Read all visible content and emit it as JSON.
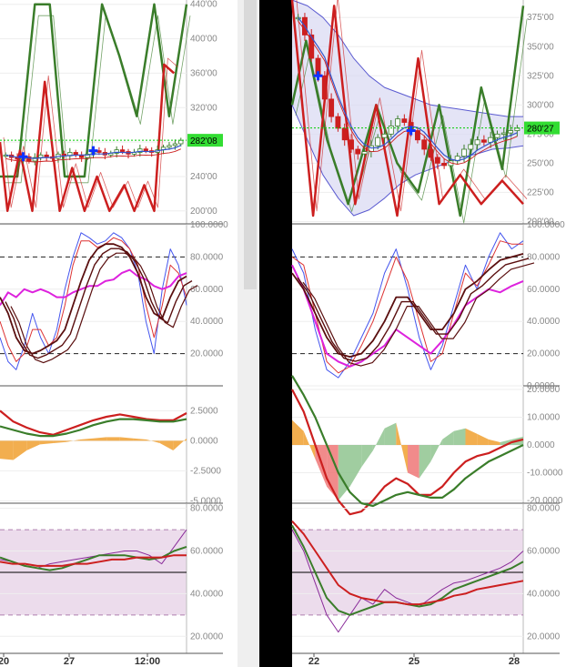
{
  "colors": {
    "bull": "#3a7d2a",
    "bear": "#cc1f1f",
    "price_line": "#00cc00",
    "bb_fill": "#d8d8f2",
    "bb_line": "#5a5ad0",
    "ma_blue": "#3355cc",
    "stoch_blue": "#4455ee",
    "stoch_red": "#dd3333",
    "stoch_magenta": "#dd22dd",
    "stoch_dark": "#5a0f0f",
    "macd_orange": "#f0a030",
    "macd_green": "#8fc48f",
    "macd_red": "#ee7777",
    "rsi_band": "#ecdcec",
    "rsi_purple": "#8a2c9a",
    "badge": "#33dd33",
    "separator": "#000000",
    "scrollbar": "#d9d9d9"
  },
  "chart_data": [
    {
      "id": "left-price",
      "type": "candlestick",
      "panel": "left",
      "price_badge": "282'08",
      "y_ticks": [
        "440'00",
        "400'00",
        "360'00",
        "320'00",
        "280'00",
        "240'00",
        "200'00"
      ],
      "ylim": [
        185,
        445
      ],
      "x_ticks": [
        "20",
        "27",
        "12:00"
      ],
      "current_price": 282.08,
      "zigzag_green": [
        [
          0,
          240
        ],
        [
          7,
          240
        ],
        [
          14,
          440
        ],
        [
          20,
          440
        ],
        [
          26,
          240
        ],
        [
          34,
          240
        ],
        [
          41,
          440
        ],
        [
          48,
          380
        ],
        [
          55,
          310
        ],
        [
          62,
          440
        ],
        [
          68,
          310
        ],
        [
          75,
          440
        ]
      ],
      "zigzag_red": [
        [
          0,
          280
        ],
        [
          3,
          200
        ],
        [
          8,
          270
        ],
        [
          13,
          200
        ],
        [
          18,
          350
        ],
        [
          24,
          200
        ],
        [
          29,
          250
        ],
        [
          34,
          200
        ],
        [
          39,
          240
        ],
        [
          44,
          200
        ],
        [
          50,
          230
        ],
        [
          54,
          200
        ],
        [
          58,
          230
        ],
        [
          62,
          200
        ],
        [
          66,
          370
        ],
        [
          70,
          360
        ]
      ],
      "candles_close": [
        265,
        262,
        260,
        263,
        258,
        262,
        265,
        263,
        261,
        266,
        264,
        268,
        265,
        262,
        266,
        270,
        268,
        265,
        267,
        271,
        269,
        266,
        268,
        272,
        270,
        268,
        271,
        274,
        276,
        278,
        282
      ]
    },
    {
      "id": "left-stoch",
      "type": "line",
      "panel": "left",
      "y_ticks": [
        "100.0000",
        "80.0000",
        "60.0000",
        "40.0000",
        "20.0000"
      ],
      "ylim": [
        0,
        100
      ],
      "dashed_levels": [
        80,
        20
      ],
      "series": [
        {
          "values": [
            30,
            15,
            10,
            25,
            45,
            30,
            20,
            35,
            60,
            80,
            95,
            92,
            88,
            90,
            95,
            92,
            85,
            70,
            40,
            20,
            60,
            85,
            75,
            50
          ]
        },
        {
          "values": [
            40,
            25,
            15,
            20,
            35,
            35,
            25,
            30,
            50,
            75,
            90,
            90,
            86,
            88,
            92,
            90,
            85,
            75,
            50,
            30,
            50,
            75,
            70,
            55
          ]
        },
        {
          "values": [
            50,
            58,
            55,
            60,
            58,
            60,
            58,
            55,
            55,
            58,
            60,
            62,
            62,
            65,
            66,
            70,
            72,
            68,
            66,
            62,
            60,
            62,
            68,
            70
          ]
        },
        {
          "values": [
            55,
            45,
            30,
            22,
            20,
            22,
            25,
            28,
            35,
            50,
            65,
            78,
            85,
            88,
            88,
            86,
            80,
            70,
            55,
            45,
            42,
            55,
            65,
            68
          ]
        }
      ]
    },
    {
      "id": "left-macd",
      "type": "area",
      "panel": "left",
      "y_ticks": [
        "2.5000",
        "0.0000",
        "-2.5000",
        "-5.0000"
      ],
      "ylim": [
        -5.2,
        4.5
      ],
      "histogram": [
        -1.5,
        -1.6,
        -0.8,
        -0.3,
        -0.2,
        -0.1,
        0.1,
        0.2,
        0.3,
        0.3,
        0.2,
        0.1,
        -0.2,
        -0.8,
        0.2
      ],
      "series": [
        {
          "values": [
            2.5,
            1.6,
            1.1,
            0.7,
            0.5,
            0.9,
            1.3,
            1.7,
            2.0,
            2.2,
            2.0,
            1.8,
            1.7,
            1.7,
            2.3
          ]
        },
        {
          "values": [
            1.2,
            0.9,
            0.6,
            0.4,
            0.4,
            0.6,
            0.9,
            1.3,
            1.6,
            1.8,
            1.8,
            1.7,
            1.6,
            1.6,
            1.8
          ]
        }
      ]
    },
    {
      "id": "left-rsi",
      "type": "line",
      "panel": "left",
      "y_ticks": [
        "80.0000",
        "60.0000",
        "40.0000",
        "20.0000"
      ],
      "ylim": [
        12,
        82
      ],
      "band": [
        30,
        70
      ],
      "h_line": 50,
      "series": [
        {
          "values": [
            56,
            55,
            53,
            52,
            54,
            55,
            56,
            57,
            58,
            59,
            60,
            60,
            58,
            54,
            62,
            70
          ]
        },
        {
          "values": [
            57,
            55,
            53,
            52,
            51,
            52,
            54,
            56,
            58,
            58,
            58,
            57,
            56,
            57,
            60,
            62
          ]
        },
        {
          "values": [
            55,
            54,
            54,
            53,
            53,
            53,
            54,
            54,
            55,
            56,
            56,
            57,
            57,
            57,
            58,
            58
          ]
        }
      ]
    },
    {
      "id": "right-price",
      "type": "candlestick",
      "panel": "right",
      "price_badge": "280'27",
      "y_ticks": [
        "375'00",
        "350'00",
        "325'00",
        "300'00",
        "275'00",
        "250'00",
        "225'00",
        "200'00"
      ],
      "ylim": [
        198,
        390
      ],
      "x_ticks": [
        "22",
        "25",
        "28"
      ],
      "current_price": 280.27,
      "bb_upper": [
        390,
        385,
        375,
        360,
        340,
        325,
        315,
        310,
        305,
        300,
        298,
        296,
        294,
        292,
        290,
        290
      ],
      "bb_lower": [
        300,
        270,
        240,
        220,
        205,
        210,
        220,
        232,
        240,
        245,
        250,
        255,
        258,
        262,
        263,
        265
      ],
      "zigzag_green": [
        [
          0,
          300
        ],
        [
          2,
          355
        ],
        [
          5,
          270
        ],
        [
          8,
          215
        ],
        [
          12,
          300
        ],
        [
          15,
          250
        ],
        [
          18,
          225
        ],
        [
          21,
          300
        ],
        [
          24,
          205
        ],
        [
          27,
          315
        ],
        [
          30,
          245
        ],
        [
          33,
          385
        ]
      ],
      "zigzag_red": [
        [
          0,
          390
        ],
        [
          3,
          205
        ],
        [
          6,
          385
        ],
        [
          9,
          215
        ],
        [
          12,
          300
        ],
        [
          15,
          205
        ],
        [
          18,
          340
        ],
        [
          21,
          215
        ],
        [
          24,
          240
        ],
        [
          27,
          215
        ],
        [
          30,
          235
        ],
        [
          33,
          215
        ]
      ],
      "candles_close": [
        375,
        360,
        340,
        325,
        305,
        290,
        280,
        270,
        262,
        258,
        260,
        265,
        272,
        275,
        282,
        288,
        285,
        278,
        270,
        262,
        255,
        250,
        248,
        252,
        256,
        262,
        266,
        270,
        268,
        272,
        275,
        276,
        278,
        280
      ]
    },
    {
      "id": "right-stoch",
      "type": "line",
      "panel": "right",
      "y_ticks": [
        "100.0000",
        "80.0000",
        "60.0000",
        "40.0000",
        "20.0000",
        "0.0000"
      ],
      "ylim": [
        0,
        100
      ],
      "dashed_levels": [
        80,
        20
      ],
      "series": [
        {
          "values": [
            85,
            70,
            35,
            10,
            5,
            15,
            30,
            45,
            70,
            85,
            60,
            30,
            10,
            25,
            50,
            75,
            60,
            80,
            95,
            85,
            90
          ]
        },
        {
          "values": [
            80,
            75,
            45,
            15,
            8,
            12,
            25,
            40,
            60,
            80,
            65,
            40,
            15,
            20,
            45,
            70,
            62,
            75,
            90,
            88,
            88
          ]
        },
        {
          "values": [
            75,
            60,
            40,
            20,
            15,
            12,
            15,
            20,
            25,
            35,
            30,
            25,
            20,
            28,
            38,
            50,
            55,
            60,
            58,
            62,
            65
          ]
        },
        {
          "values": [
            70,
            60,
            45,
            30,
            20,
            18,
            20,
            28,
            40,
            55,
            55,
            45,
            35,
            35,
            45,
            60,
            65,
            72,
            78,
            80,
            82
          ]
        }
      ]
    },
    {
      "id": "right-macd",
      "type": "area",
      "panel": "right",
      "y_ticks": [
        "20.0000",
        "10.0000",
        "0.0000",
        "-10.0000",
        "-20.0000"
      ],
      "ylim": [
        -21,
        21
      ],
      "histogram": [
        9,
        5,
        -5,
        -15,
        -20,
        -15,
        -8,
        -2,
        6,
        8,
        -10,
        -12,
        -6,
        2,
        5,
        6,
        4,
        2,
        1,
        2,
        3
      ],
      "series": [
        {
          "values": [
            20,
            12,
            0,
            -12,
            -20,
            -25,
            -24,
            -20,
            -15,
            -12,
            -14,
            -18,
            -18,
            -15,
            -10,
            -6,
            -4,
            -3,
            -1,
            1,
            2
          ]
        },
        {
          "values": [
            25,
            18,
            10,
            0,
            -10,
            -17,
            -21,
            -22,
            -20,
            -18,
            -17,
            -18,
            -19,
            -19,
            -16,
            -12,
            -9,
            -6,
            -4,
            -2,
            0
          ]
        }
      ]
    },
    {
      "id": "right-rsi",
      "type": "line",
      "panel": "right",
      "y_ticks": [
        "80.0000",
        "60.0000",
        "40.0000",
        "20.0000"
      ],
      "ylim": [
        12,
        82
      ],
      "band": [
        30,
        70
      ],
      "h_line": 50,
      "series": [
        {
          "values": [
            70,
            60,
            45,
            30,
            22,
            30,
            38,
            35,
            42,
            38,
            36,
            34,
            38,
            42,
            45,
            46,
            48,
            50,
            52,
            55,
            60
          ]
        },
        {
          "values": [
            72,
            62,
            50,
            38,
            32,
            30,
            32,
            34,
            36,
            36,
            35,
            34,
            35,
            38,
            42,
            44,
            46,
            48,
            50,
            52,
            55
          ]
        },
        {
          "values": [
            74,
            68,
            60,
            52,
            44,
            40,
            38,
            37,
            36,
            36,
            35,
            35,
            36,
            37,
            39,
            40,
            42,
            43,
            44,
            45,
            46
          ]
        }
      ]
    }
  ]
}
